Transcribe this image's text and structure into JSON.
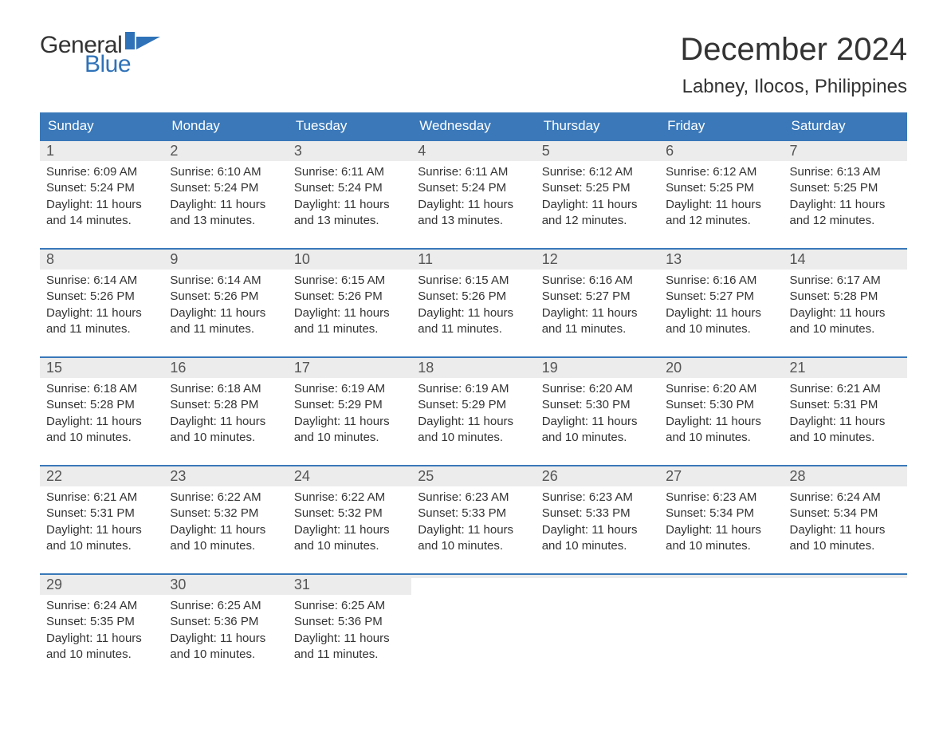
{
  "logo": {
    "general": "General",
    "blue": "Blue"
  },
  "title": "December 2024",
  "location": "Labney, Ilocos, Philippines",
  "colors": {
    "header_bg": "#3a78b9",
    "header_text": "#ffffff",
    "daynum_bg": "#ececec",
    "logo_blue": "#2f72b8",
    "text": "#333333",
    "week_border": "#3a78b9",
    "page_bg": "#ffffff"
  },
  "typography": {
    "title_fontsize": 40,
    "location_fontsize": 24,
    "weekday_fontsize": 17,
    "daynum_fontsize": 18,
    "body_fontsize": 15,
    "logo_fontsize": 30
  },
  "weekdays": [
    "Sunday",
    "Monday",
    "Tuesday",
    "Wednesday",
    "Thursday",
    "Friday",
    "Saturday"
  ],
  "weeks": [
    [
      {
        "n": "1",
        "sr": "Sunrise: 6:09 AM",
        "ss": "Sunset: 5:24 PM",
        "dl1": "Daylight: 11 hours",
        "dl2": "and 14 minutes."
      },
      {
        "n": "2",
        "sr": "Sunrise: 6:10 AM",
        "ss": "Sunset: 5:24 PM",
        "dl1": "Daylight: 11 hours",
        "dl2": "and 13 minutes."
      },
      {
        "n": "3",
        "sr": "Sunrise: 6:11 AM",
        "ss": "Sunset: 5:24 PM",
        "dl1": "Daylight: 11 hours",
        "dl2": "and 13 minutes."
      },
      {
        "n": "4",
        "sr": "Sunrise: 6:11 AM",
        "ss": "Sunset: 5:24 PM",
        "dl1": "Daylight: 11 hours",
        "dl2": "and 13 minutes."
      },
      {
        "n": "5",
        "sr": "Sunrise: 6:12 AM",
        "ss": "Sunset: 5:25 PM",
        "dl1": "Daylight: 11 hours",
        "dl2": "and 12 minutes."
      },
      {
        "n": "6",
        "sr": "Sunrise: 6:12 AM",
        "ss": "Sunset: 5:25 PM",
        "dl1": "Daylight: 11 hours",
        "dl2": "and 12 minutes."
      },
      {
        "n": "7",
        "sr": "Sunrise: 6:13 AM",
        "ss": "Sunset: 5:25 PM",
        "dl1": "Daylight: 11 hours",
        "dl2": "and 12 minutes."
      }
    ],
    [
      {
        "n": "8",
        "sr": "Sunrise: 6:14 AM",
        "ss": "Sunset: 5:26 PM",
        "dl1": "Daylight: 11 hours",
        "dl2": "and 11 minutes."
      },
      {
        "n": "9",
        "sr": "Sunrise: 6:14 AM",
        "ss": "Sunset: 5:26 PM",
        "dl1": "Daylight: 11 hours",
        "dl2": "and 11 minutes."
      },
      {
        "n": "10",
        "sr": "Sunrise: 6:15 AM",
        "ss": "Sunset: 5:26 PM",
        "dl1": "Daylight: 11 hours",
        "dl2": "and 11 minutes."
      },
      {
        "n": "11",
        "sr": "Sunrise: 6:15 AM",
        "ss": "Sunset: 5:26 PM",
        "dl1": "Daylight: 11 hours",
        "dl2": "and 11 minutes."
      },
      {
        "n": "12",
        "sr": "Sunrise: 6:16 AM",
        "ss": "Sunset: 5:27 PM",
        "dl1": "Daylight: 11 hours",
        "dl2": "and 11 minutes."
      },
      {
        "n": "13",
        "sr": "Sunrise: 6:16 AM",
        "ss": "Sunset: 5:27 PM",
        "dl1": "Daylight: 11 hours",
        "dl2": "and 10 minutes."
      },
      {
        "n": "14",
        "sr": "Sunrise: 6:17 AM",
        "ss": "Sunset: 5:28 PM",
        "dl1": "Daylight: 11 hours",
        "dl2": "and 10 minutes."
      }
    ],
    [
      {
        "n": "15",
        "sr": "Sunrise: 6:18 AM",
        "ss": "Sunset: 5:28 PM",
        "dl1": "Daylight: 11 hours",
        "dl2": "and 10 minutes."
      },
      {
        "n": "16",
        "sr": "Sunrise: 6:18 AM",
        "ss": "Sunset: 5:28 PM",
        "dl1": "Daylight: 11 hours",
        "dl2": "and 10 minutes."
      },
      {
        "n": "17",
        "sr": "Sunrise: 6:19 AM",
        "ss": "Sunset: 5:29 PM",
        "dl1": "Daylight: 11 hours",
        "dl2": "and 10 minutes."
      },
      {
        "n": "18",
        "sr": "Sunrise: 6:19 AM",
        "ss": "Sunset: 5:29 PM",
        "dl1": "Daylight: 11 hours",
        "dl2": "and 10 minutes."
      },
      {
        "n": "19",
        "sr": "Sunrise: 6:20 AM",
        "ss": "Sunset: 5:30 PM",
        "dl1": "Daylight: 11 hours",
        "dl2": "and 10 minutes."
      },
      {
        "n": "20",
        "sr": "Sunrise: 6:20 AM",
        "ss": "Sunset: 5:30 PM",
        "dl1": "Daylight: 11 hours",
        "dl2": "and 10 minutes."
      },
      {
        "n": "21",
        "sr": "Sunrise: 6:21 AM",
        "ss": "Sunset: 5:31 PM",
        "dl1": "Daylight: 11 hours",
        "dl2": "and 10 minutes."
      }
    ],
    [
      {
        "n": "22",
        "sr": "Sunrise: 6:21 AM",
        "ss": "Sunset: 5:31 PM",
        "dl1": "Daylight: 11 hours",
        "dl2": "and 10 minutes."
      },
      {
        "n": "23",
        "sr": "Sunrise: 6:22 AM",
        "ss": "Sunset: 5:32 PM",
        "dl1": "Daylight: 11 hours",
        "dl2": "and 10 minutes."
      },
      {
        "n": "24",
        "sr": "Sunrise: 6:22 AM",
        "ss": "Sunset: 5:32 PM",
        "dl1": "Daylight: 11 hours",
        "dl2": "and 10 minutes."
      },
      {
        "n": "25",
        "sr": "Sunrise: 6:23 AM",
        "ss": "Sunset: 5:33 PM",
        "dl1": "Daylight: 11 hours",
        "dl2": "and 10 minutes."
      },
      {
        "n": "26",
        "sr": "Sunrise: 6:23 AM",
        "ss": "Sunset: 5:33 PM",
        "dl1": "Daylight: 11 hours",
        "dl2": "and 10 minutes."
      },
      {
        "n": "27",
        "sr": "Sunrise: 6:23 AM",
        "ss": "Sunset: 5:34 PM",
        "dl1": "Daylight: 11 hours",
        "dl2": "and 10 minutes."
      },
      {
        "n": "28",
        "sr": "Sunrise: 6:24 AM",
        "ss": "Sunset: 5:34 PM",
        "dl1": "Daylight: 11 hours",
        "dl2": "and 10 minutes."
      }
    ],
    [
      {
        "n": "29",
        "sr": "Sunrise: 6:24 AM",
        "ss": "Sunset: 5:35 PM",
        "dl1": "Daylight: 11 hours",
        "dl2": "and 10 minutes."
      },
      {
        "n": "30",
        "sr": "Sunrise: 6:25 AM",
        "ss": "Sunset: 5:36 PM",
        "dl1": "Daylight: 11 hours",
        "dl2": "and 10 minutes."
      },
      {
        "n": "31",
        "sr": "Sunrise: 6:25 AM",
        "ss": "Sunset: 5:36 PM",
        "dl1": "Daylight: 11 hours",
        "dl2": "and 11 minutes."
      },
      {
        "empty": true
      },
      {
        "empty": true
      },
      {
        "empty": true
      },
      {
        "empty": true
      }
    ]
  ]
}
